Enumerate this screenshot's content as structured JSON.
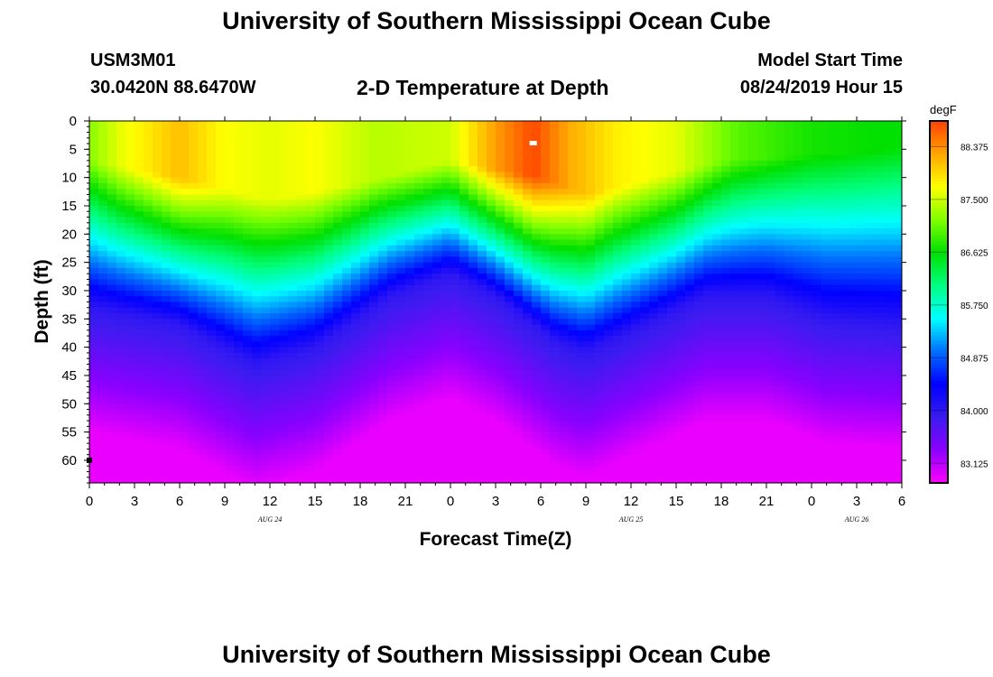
{
  "page": {
    "title": "University of Southern Mississippi Ocean Cube",
    "footer_title": "University of Southern Mississippi Ocean Cube",
    "station_id": "USM3M01",
    "coordinates": "30.0420N 88.6470W",
    "plot_title": "2-D Temperature at Depth",
    "start_label": "Model Start Time",
    "start_value": "08/24/2019 Hour 15"
  },
  "colors": {
    "scale": [
      "#ff00ff",
      "#8b00ff",
      "#3a1cf0",
      "#0000ff",
      "#0070ff",
      "#00ffff",
      "#00ff80",
      "#00e000",
      "#80ff00",
      "#ffff00",
      "#ffa500",
      "#ff4000"
    ]
  },
  "chart_data": {
    "type": "heatmap",
    "title": "2-D Temperature at Depth",
    "xlabel": "Forecast Time(Z)",
    "ylabel": "Depth (ft)",
    "x_range_hours": [
      0,
      54
    ],
    "y_range_ft": [
      0,
      64
    ],
    "x_ticks": [
      {
        "h": 0,
        "label": "0"
      },
      {
        "h": 3,
        "label": "3"
      },
      {
        "h": 6,
        "label": "6"
      },
      {
        "h": 9,
        "label": "9"
      },
      {
        "h": 12,
        "label": "12"
      },
      {
        "h": 15,
        "label": "15"
      },
      {
        "h": 18,
        "label": "18"
      },
      {
        "h": 21,
        "label": "21"
      },
      {
        "h": 24,
        "label": "0"
      },
      {
        "h": 27,
        "label": "3"
      },
      {
        "h": 30,
        "label": "6"
      },
      {
        "h": 33,
        "label": "9"
      },
      {
        "h": 36,
        "label": "12"
      },
      {
        "h": 39,
        "label": "15"
      },
      {
        "h": 42,
        "label": "18"
      },
      {
        "h": 45,
        "label": "21"
      },
      {
        "h": 48,
        "label": "0"
      },
      {
        "h": 51,
        "label": "3"
      },
      {
        "h": 54,
        "label": "6"
      }
    ],
    "date_labels": [
      {
        "h": 12,
        "label": "AUG 24"
      },
      {
        "h": 36,
        "label": "AUG 25"
      },
      {
        "h": 51,
        "label": "AUG 26"
      }
    ],
    "y_ticks": [
      0,
      5,
      10,
      15,
      20,
      25,
      30,
      35,
      40,
      45,
      50,
      55,
      60
    ],
    "colorbar": {
      "unit": "degF",
      "range": [
        82.8,
        88.8
      ],
      "labels": [
        "88.375",
        "87.500",
        "86.625",
        "85.750",
        "84.875",
        "84.000",
        "83.125"
      ]
    },
    "thermocline_depth_ft": [
      {
        "h": 0,
        "d": 27
      },
      {
        "h": 6,
        "d": 30
      },
      {
        "h": 11,
        "d": 37
      },
      {
        "h": 15,
        "d": 34
      },
      {
        "h": 20,
        "d": 25
      },
      {
        "h": 24,
        "d": 21
      },
      {
        "h": 27,
        "d": 25
      },
      {
        "h": 31,
        "d": 33
      },
      {
        "h": 33,
        "d": 35
      },
      {
        "h": 37,
        "d": 30
      },
      {
        "h": 41,
        "d": 25
      },
      {
        "h": 45,
        "d": 25
      },
      {
        "h": 49,
        "d": 29
      },
      {
        "h": 54,
        "d": 30
      }
    ],
    "surface_temp_degF": [
      {
        "h": 0,
        "t": 87.2
      },
      {
        "h": 2,
        "t": 87.6
      },
      {
        "h": 6,
        "t": 88.1
      },
      {
        "h": 9,
        "t": 87.7
      },
      {
        "h": 12,
        "t": 87.6
      },
      {
        "h": 15,
        "t": 87.7
      },
      {
        "h": 19,
        "t": 87.4
      },
      {
        "h": 24,
        "t": 87.5
      },
      {
        "h": 27,
        "t": 88.3
      },
      {
        "h": 29.5,
        "t": 88.75
      },
      {
        "h": 32,
        "t": 88.2
      },
      {
        "h": 35,
        "t": 87.8
      },
      {
        "h": 39,
        "t": 87.6
      },
      {
        "h": 43,
        "t": 87.0
      },
      {
        "h": 48,
        "t": 86.7
      },
      {
        "h": 54,
        "t": 86.6
      }
    ],
    "warm_layer_depth_ft": [
      {
        "h": 0,
        "d": 7
      },
      {
        "h": 6,
        "d": 10
      },
      {
        "h": 12,
        "d": 14
      },
      {
        "h": 18,
        "d": 11
      },
      {
        "h": 24,
        "d": 7
      },
      {
        "h": 30,
        "d": 10
      },
      {
        "h": 33,
        "d": 13
      },
      {
        "h": 42,
        "d": 7
      },
      {
        "h": 48,
        "d": 6
      },
      {
        "h": 54,
        "d": 5
      }
    ],
    "bottom_temp_degF": 82.9,
    "markers": [
      {
        "type": "max",
        "h": 29.5,
        "depth_ft": 4
      },
      {
        "type": "station",
        "h": 0,
        "depth_ft": 60
      }
    ]
  }
}
